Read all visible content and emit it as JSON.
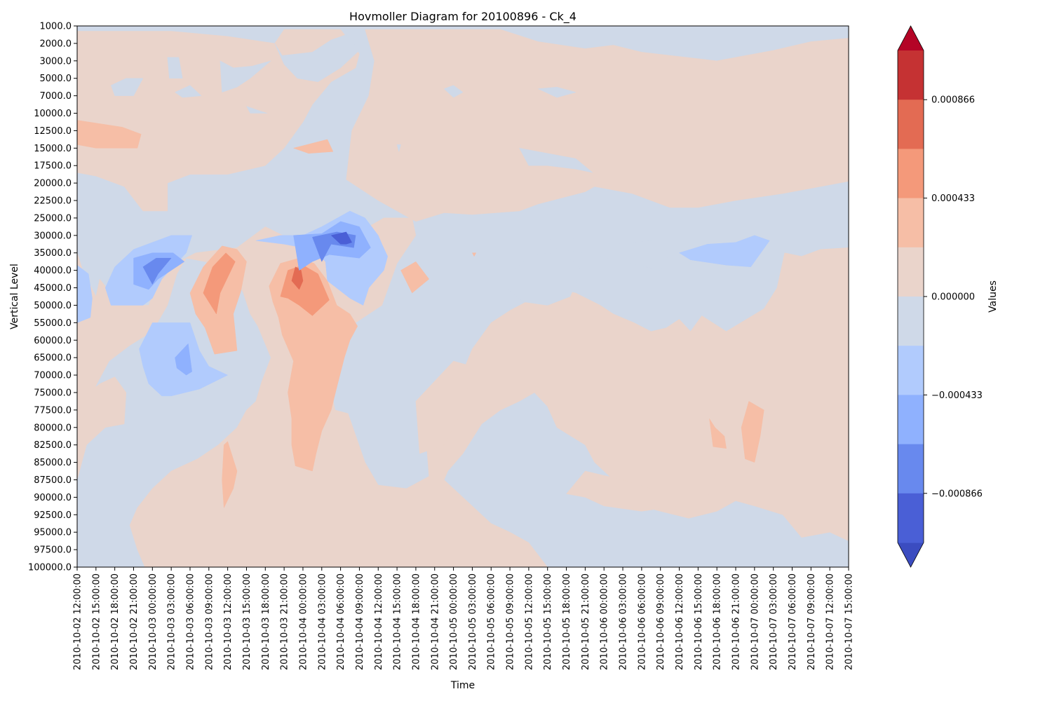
{
  "chart_data": {
    "type": "heatmap",
    "subtype": "filled-contour",
    "title": "Hovmoller Diagram for 20100896 - Ck_4",
    "xlabel": "Time",
    "ylabel": "Vertical Level",
    "grid": false,
    "x": [
      "2010-10-02 12:00:00",
      "2010-10-02 15:00:00",
      "2010-10-02 18:00:00",
      "2010-10-02 21:00:00",
      "2010-10-03 00:00:00",
      "2010-10-03 03:00:00",
      "2010-10-03 06:00:00",
      "2010-10-03 09:00:00",
      "2010-10-03 12:00:00",
      "2010-10-03 15:00:00",
      "2010-10-03 18:00:00",
      "2010-10-03 21:00:00",
      "2010-10-04 00:00:00",
      "2010-10-04 03:00:00",
      "2010-10-04 06:00:00",
      "2010-10-04 09:00:00",
      "2010-10-04 12:00:00",
      "2010-10-04 15:00:00",
      "2010-10-04 18:00:00",
      "2010-10-04 21:00:00",
      "2010-10-05 00:00:00",
      "2010-10-05 03:00:00",
      "2010-10-05 06:00:00",
      "2010-10-05 09:00:00",
      "2010-10-05 12:00:00",
      "2010-10-05 15:00:00",
      "2010-10-05 18:00:00",
      "2010-10-05 21:00:00",
      "2010-10-06 00:00:00",
      "2010-10-06 03:00:00",
      "2010-10-06 06:00:00",
      "2010-10-06 09:00:00",
      "2010-10-06 12:00:00",
      "2010-10-06 15:00:00",
      "2010-10-06 18:00:00",
      "2010-10-06 21:00:00",
      "2010-10-07 00:00:00",
      "2010-10-07 03:00:00",
      "2010-10-07 06:00:00",
      "2010-10-07 09:00:00",
      "2010-10-07 12:00:00",
      "2010-10-07 15:00:00"
    ],
    "y": [
      "1000.0",
      "2000.0",
      "3000.0",
      "5000.0",
      "7000.0",
      "10000.0",
      "12500.0",
      "15000.0",
      "17500.0",
      "20000.0",
      "22500.0",
      "25000.0",
      "30000.0",
      "35000.0",
      "40000.0",
      "45000.0",
      "50000.0",
      "55000.0",
      "60000.0",
      "65000.0",
      "70000.0",
      "75000.0",
      "77500.0",
      "80000.0",
      "82500.0",
      "85000.0",
      "87500.0",
      "90000.0",
      "92500.0",
      "95000.0",
      "97500.0",
      "100000.0"
    ],
    "level_colors": [
      "#3b4cc0",
      "#4a5fd6",
      "#6889ee",
      "#8fb1fe",
      "#b1cbfd",
      "#cfd9e8",
      "#ead4cb",
      "#f6bea6",
      "#f4997a",
      "#e36b53",
      "#c53233",
      "#b40426"
    ],
    "colorbar": {
      "label": "Values",
      "extend": "both",
      "tick_labels": [
        "0.000866",
        "0.000433",
        "0.000000",
        "−0.000433",
        "−0.000866"
      ],
      "tick_values": [
        0.000866,
        0.000433,
        0.0,
        -0.000433,
        -0.000866
      ]
    },
    "features": [
      {
        "name": "negative core",
        "time": "2010-10-04 06:00:00",
        "level": 30000,
        "min_value": -0.0011
      },
      {
        "name": "negative core",
        "time": "2010-10-03 00:00:00",
        "level": 35000,
        "min_value": -0.0009
      },
      {
        "name": "positive core",
        "time": "2010-10-03 21:00:00",
        "level": 42500,
        "max_value": 0.0009
      },
      {
        "name": "positive core",
        "time": "2010-10-03 10:30:00",
        "level": 40000,
        "max_value": 0.0006
      },
      {
        "name": "negative patch",
        "time": "2010-10-03 04:30:00",
        "level": 65000,
        "min_value": -0.0006
      }
    ]
  }
}
